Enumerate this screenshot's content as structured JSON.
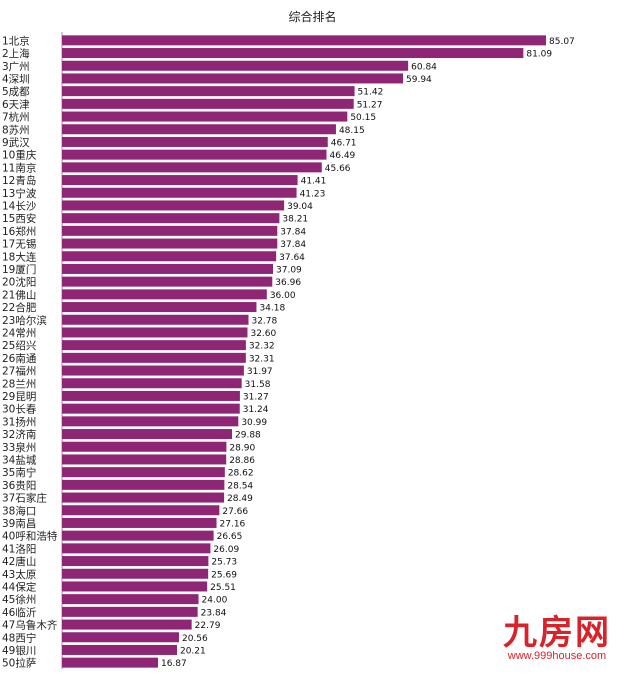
{
  "chart_data": {
    "type": "bar",
    "orientation": "horizontal",
    "title": "综合排名",
    "xlabel": "",
    "ylabel": "",
    "xlim": [
      0,
      85.07
    ],
    "grid": false,
    "legend": "none",
    "bar_color": "#8e2575",
    "categories": [
      "1北京",
      "2上海",
      "3广州",
      "4深圳",
      "5成都",
      "6天津",
      "7杭州",
      "8苏州",
      "9武汉",
      "10重庆",
      "11南京",
      "12青岛",
      "13宁波",
      "14长沙",
      "15西安",
      "16郑州",
      "17无锡",
      "18大连",
      "19厦门",
      "20沈阳",
      "21佛山",
      "22合肥",
      "23哈尔滨",
      "24常州",
      "25绍兴",
      "26南通",
      "27福州",
      "28兰州",
      "29昆明",
      "30长春",
      "31扬州",
      "32济南",
      "33泉州",
      "34盐城",
      "35南宁",
      "36贵阳",
      "37石家庄",
      "38海口",
      "39南昌",
      "40呼和浩特",
      "41洛阳",
      "42唐山",
      "43太原",
      "44保定",
      "45徐州",
      "46临沂",
      "47乌鲁木齐",
      "48西宁",
      "49银川",
      "50拉萨"
    ],
    "values": [
      85.07,
      81.09,
      60.84,
      59.94,
      51.42,
      51.27,
      50.15,
      48.15,
      46.71,
      46.49,
      45.66,
      41.41,
      41.23,
      39.04,
      38.21,
      37.84,
      37.84,
      37.64,
      37.09,
      36.96,
      36.0,
      34.18,
      32.78,
      32.6,
      32.32,
      32.31,
      31.97,
      31.58,
      31.27,
      31.24,
      30.99,
      29.88,
      28.9,
      28.86,
      28.62,
      28.54,
      28.49,
      27.66,
      27.16,
      26.65,
      26.09,
      25.73,
      25.69,
      25.51,
      24.0,
      23.84,
      22.79,
      20.56,
      20.21,
      16.87
    ],
    "value_labels": [
      "85.07",
      "81.09",
      "60.84",
      "59.94",
      "51.42",
      "51.27",
      "50.15",
      "48.15",
      "46.71",
      "46.49",
      "45.66",
      "41.41",
      "41.23",
      "39.04",
      "38.21",
      "37.84",
      "37.84",
      "37.64",
      "37.09",
      "36.96",
      "36.00",
      "34.18",
      "32.78",
      "32.60",
      "32.32",
      "32.31",
      "31.97",
      "31.58",
      "31.27",
      "31.24",
      "30.99",
      "29.88",
      "28.90",
      "28.86",
      "28.62",
      "28.54",
      "28.49",
      "27.66",
      "27.16",
      "26.65",
      "26.09",
      "25.73",
      "25.69",
      "25.51",
      "24.00",
      "23.84",
      "22.79",
      "20.56",
      "20.21",
      "16.87"
    ]
  },
  "watermark": {
    "logo": "九房网",
    "url": "www.999house.com",
    "color": "#d8232a"
  }
}
